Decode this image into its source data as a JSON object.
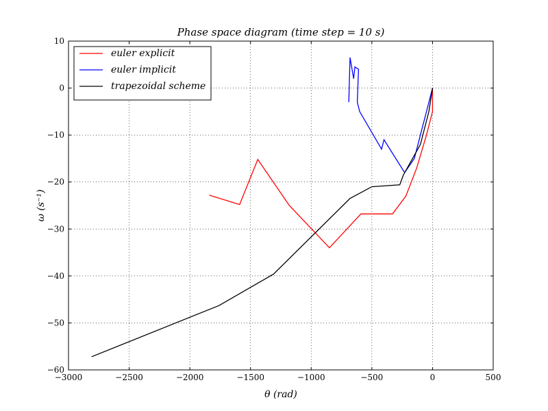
{
  "chart_data": {
    "type": "line",
    "title": "Phase space diagram (time step = 10 s)",
    "xlabel": "θ (rad)",
    "ylabel": "ω (s⁻¹)",
    "xlim": [
      -3000,
      500
    ],
    "ylim": [
      -60,
      10
    ],
    "x_ticks": [
      -3000,
      -2500,
      -2000,
      -1500,
      -1000,
      -500,
      0,
      500
    ],
    "y_ticks": [
      -60,
      -50,
      -40,
      -30,
      -20,
      -10,
      0,
      10
    ],
    "x_tick_labels": [
      "−3000",
      "−2500",
      "−2000",
      "−1500",
      "−1000",
      "−500",
      "0",
      "500"
    ],
    "y_tick_labels": [
      "−60",
      "−50",
      "−40",
      "−30",
      "−20",
      "−10",
      "0",
      "10"
    ],
    "grid": true,
    "legend_position": "top-left",
    "series": [
      {
        "name": "euler explicit",
        "color": "#ff0000",
        "x": [
          0,
          0,
          -50,
          -130,
          -220,
          -330,
          -590,
          -850,
          -1180,
          -1440,
          -1590,
          -1840
        ],
        "y": [
          0,
          -5,
          -10,
          -17,
          -23,
          -26.8,
          -26.8,
          -34,
          -25,
          -15.2,
          -24.8,
          -22.8
        ]
      },
      {
        "name": "euler implicit",
        "color": "#0000ff",
        "x": [
          0,
          -50,
          -100,
          -150,
          -230,
          -400,
          -420,
          -600,
          -620,
          -610,
          -640,
          -650,
          -680,
          -690
        ],
        "y": [
          0,
          -5,
          -10,
          -15,
          -18,
          -11,
          -13,
          -5,
          -3,
          4,
          4.5,
          2,
          6.5,
          -3
        ]
      },
      {
        "name": "trapezoidal scheme",
        "color": "#000000",
        "x": [
          0,
          -30,
          -100,
          -240,
          -270,
          -500,
          -680,
          -1310,
          -1760,
          -2810
        ],
        "y": [
          0,
          -5,
          -12,
          -18.5,
          -20.6,
          -21,
          -23.5,
          -39.6,
          -46.3,
          -57.2
        ]
      }
    ]
  }
}
